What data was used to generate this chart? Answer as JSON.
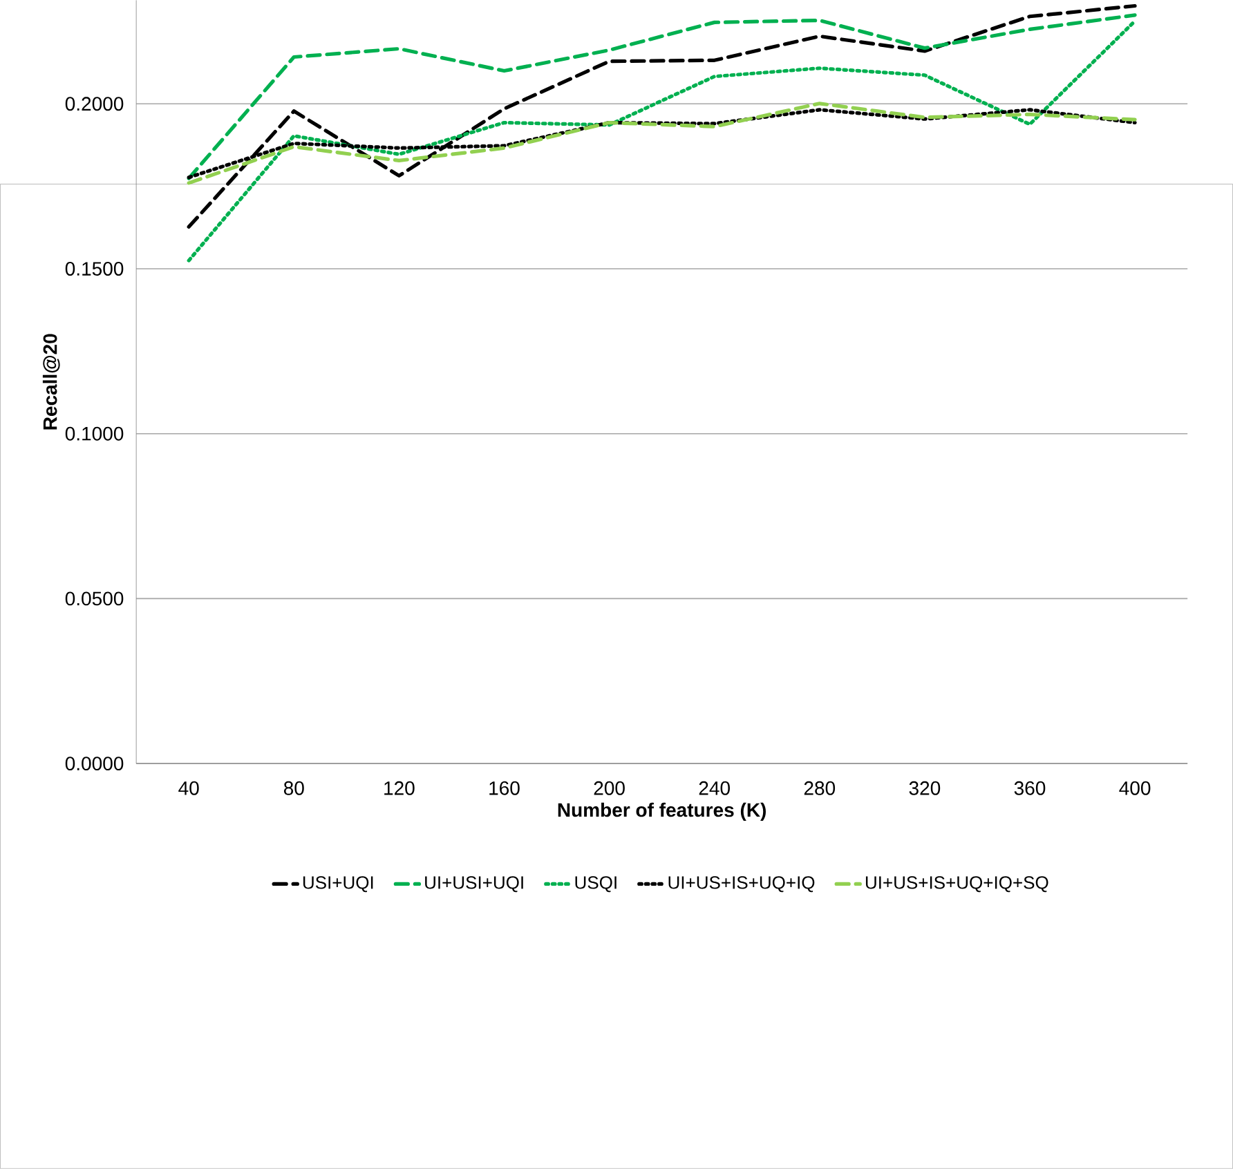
{
  "chart_data": {
    "type": "line",
    "xlabel": "Number of features (K)",
    "ylabel": "Recall@20",
    "categories": [
      "40",
      "80",
      "120",
      "160",
      "200",
      "240",
      "280",
      "320",
      "360",
      "400"
    ],
    "series": [
      {
        "name": "USI+UQI",
        "color": "#000000",
        "line_style": "dashed",
        "values": [
          0.1627,
          0.1978,
          0.1782,
          0.1985,
          0.2129,
          0.2132,
          0.2205,
          0.216,
          0.2265,
          0.2297
        ]
      },
      {
        "name": "UI+USI+UQI",
        "color": "#00b050",
        "line_style": "dashed",
        "values": [
          0.1774,
          0.2142,
          0.2167,
          0.21,
          0.2163,
          0.2247,
          0.2253,
          0.2169,
          0.2226,
          0.2269
        ]
      },
      {
        "name": "USQI",
        "color": "#00b050",
        "line_style": "dotted",
        "values": [
          0.1525,
          0.1903,
          0.1847,
          0.1943,
          0.1936,
          0.2083,
          0.2108,
          0.2087,
          0.1938,
          0.2251
        ]
      },
      {
        "name": "UI+US+IS+UQ+IQ",
        "color": "#000000",
        "line_style": "dotted",
        "values": [
          0.1777,
          0.188,
          0.1866,
          0.1873,
          0.1943,
          0.194,
          0.1982,
          0.1954,
          0.1982,
          0.1943
        ]
      },
      {
        "name": "UI+US+IS+UQ+IQ+SQ",
        "color": "#92d050",
        "line_style": "dashed",
        "values": [
          0.176,
          0.187,
          0.1828,
          0.1866,
          0.1943,
          0.1931,
          0.2001,
          0.1959,
          0.1968,
          0.1952
        ]
      }
    ],
    "ylim": [
      0,
      0.2314
    ],
    "yticks": [
      {
        "value": 0,
        "label": "0.0000"
      },
      {
        "value": 0.05,
        "label": "0.0500"
      },
      {
        "value": 0.1,
        "label": "0.1000"
      },
      {
        "value": 0.15,
        "label": "0.1500"
      },
      {
        "value": 0.2,
        "label": "0.2000"
      }
    ],
    "grid": "y",
    "legend": "bottom"
  }
}
